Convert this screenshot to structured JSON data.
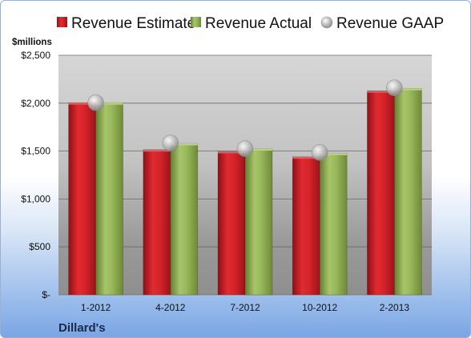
{
  "chart_data": {
    "type": "bar",
    "unit_label": "$millions",
    "company": "Dillard's",
    "categories": [
      "1-2012",
      "4-2012",
      "7-2012",
      "10-2012",
      "2-2013"
    ],
    "series": [
      {
        "name": "Revenue Estimate",
        "kind": "bar",
        "color": "#cc1f26",
        "values": [
          2005,
          1515,
          1497,
          1440,
          2130
        ]
      },
      {
        "name": "Revenue Actual",
        "kind": "bar",
        "color": "#8fae52",
        "values": [
          2005,
          1580,
          1525,
          1478,
          2155
        ]
      },
      {
        "name": "Revenue GAAP",
        "kind": "marker",
        "color": "#b9b9b9",
        "values": [
          2005,
          1585,
          1525,
          1485,
          2160
        ]
      }
    ],
    "y_ticks": [
      "$-",
      "$500",
      "$1,000",
      "$1,500",
      "$2,000",
      "$2,500"
    ],
    "ylim": [
      0,
      2500
    ],
    "grid": true,
    "legend_position": "top"
  }
}
